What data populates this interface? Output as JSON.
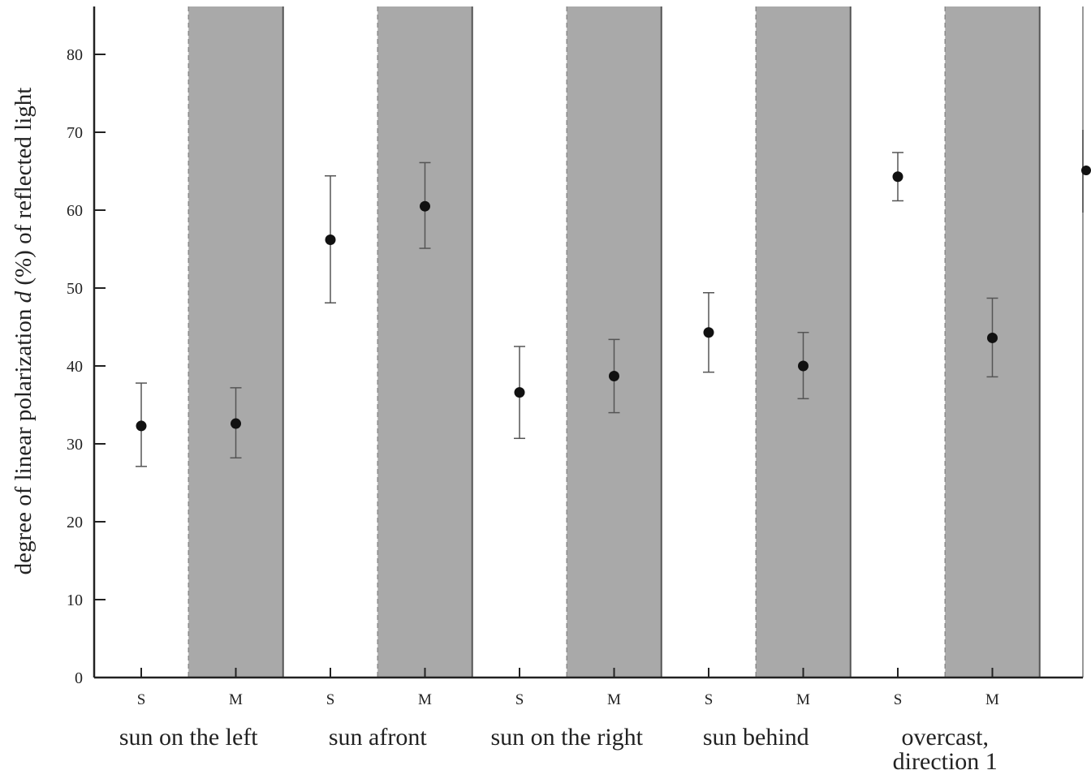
{
  "chart_data": {
    "type": "scatter",
    "ylabel_parts": [
      "degree of linear polarization ",
      "d",
      " (%) of reflected light"
    ],
    "ylim": [
      0,
      86
    ],
    "yticks": [
      0,
      10,
      20,
      30,
      40,
      50,
      60,
      70,
      80
    ],
    "colors": {
      "shaded_band": "#a9a9a9",
      "band_edge": "#555555",
      "dashed_edge": "#8a8a8a",
      "marker": "#111111",
      "errorbar": "#555555"
    },
    "groups": [
      {
        "label": "sun on the left",
        "points": [
          {
            "category": "S",
            "mean": 32.3,
            "low": 27.1,
            "high": 37.8
          },
          {
            "category": "M",
            "mean": 32.6,
            "low": 28.2,
            "high": 37.2
          }
        ]
      },
      {
        "label": "sun afront",
        "points": [
          {
            "category": "S",
            "mean": 56.2,
            "low": 48.1,
            "high": 64.4
          },
          {
            "category": "M",
            "mean": 60.5,
            "low": 55.1,
            "high": 66.1
          }
        ]
      },
      {
        "label": "sun on the right",
        "points": [
          {
            "category": "S",
            "mean": 36.6,
            "low": 30.7,
            "high": 42.5
          },
          {
            "category": "M",
            "mean": 38.7,
            "low": 34.0,
            "high": 43.4
          }
        ]
      },
      {
        "label": "sun behind",
        "points": [
          {
            "category": "S",
            "mean": 44.3,
            "low": 39.2,
            "high": 49.4
          },
          {
            "category": "M",
            "mean": 40.0,
            "low": 35.8,
            "high": 44.3
          }
        ]
      },
      {
        "label_lines": [
          "overcast,",
          "direction 1"
        ],
        "points": [
          {
            "category": "S",
            "mean": 64.3,
            "low": 61.2,
            "high": 67.4
          },
          {
            "category": "M",
            "mean": 43.6,
            "low": 38.6,
            "high": 48.7
          }
        ]
      }
    ]
  }
}
